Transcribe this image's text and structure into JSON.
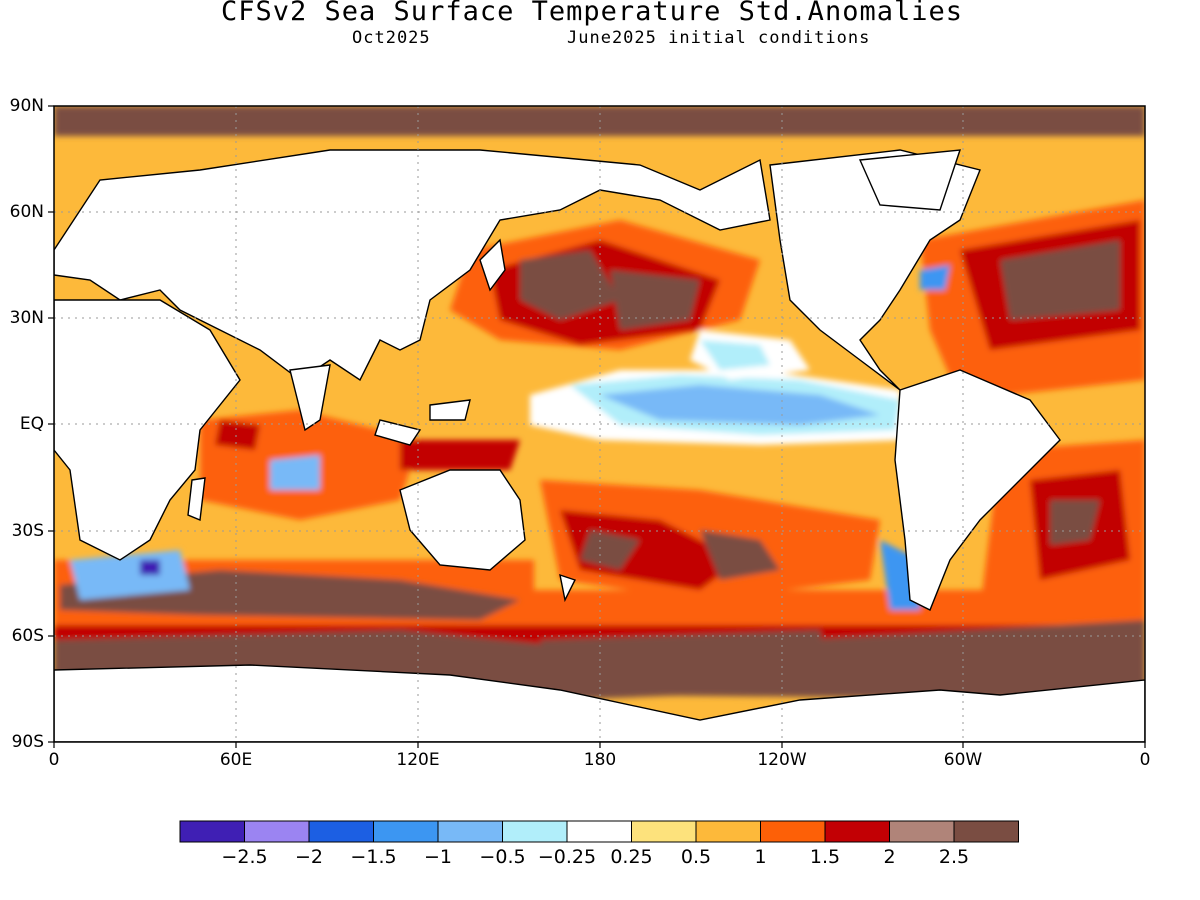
{
  "title": "CFSv2 Sea Surface Temperature Std.Anomalies",
  "subtitle_left": "Oct2025",
  "subtitle_right": "June2025 initial conditions",
  "map": {
    "lat_labels": [
      "90N",
      "60N",
      "30N",
      "EQ",
      "30S",
      "60S",
      "90S"
    ],
    "lon_labels": [
      "0",
      "60E",
      "120E",
      "180",
      "120W",
      "60W",
      "0"
    ]
  },
  "colorbar": {
    "colors": [
      "#3f1fb4",
      "#9b84f2",
      "#1c5fe3",
      "#3c96f2",
      "#78b9f7",
      "#b1eefa",
      "#ffffff",
      "#fde27c",
      "#fdb93a",
      "#fd6007",
      "#c20004",
      "#b08479",
      "#7a4d42"
    ],
    "labels": [
      "−2.5",
      "−2",
      "−1.5",
      "−1",
      "−0.5",
      "−0.25",
      "0.25",
      "0.5",
      "1",
      "1.5",
      "2",
      "2.5"
    ]
  }
}
